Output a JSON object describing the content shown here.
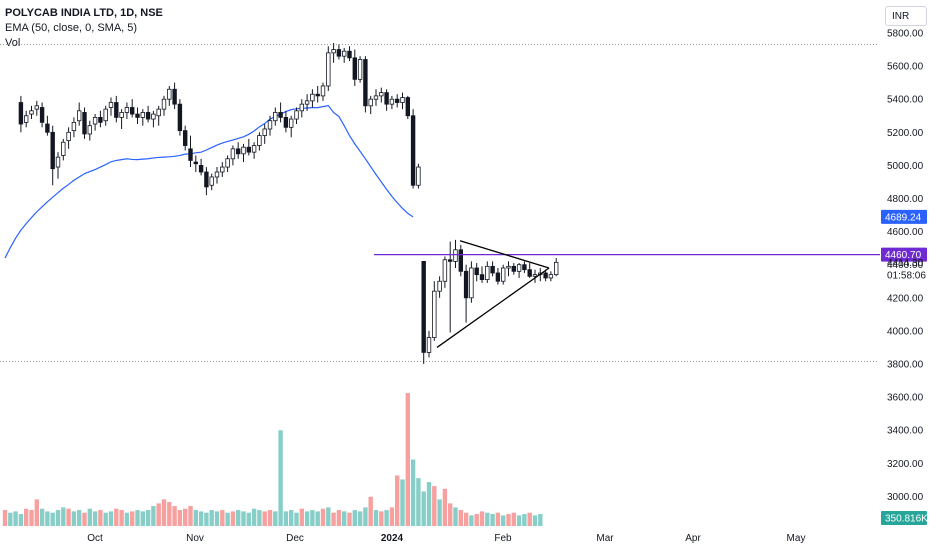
{
  "header": {
    "title": "POLYCAB INDIA LTD, 1D, NSE",
    "indicator": "EMA (50, close, 0, SMA, 5)",
    "volume_label": "Vol",
    "currency": "INR"
  },
  "colors": {
    "up": "#26a69a",
    "down": "#ef5350",
    "candle_body_up": "#ffffff",
    "candle_outline": "#131722",
    "ema": "#2962ff",
    "hline": "#6f2bd1",
    "badge_ema": "#2962ff",
    "badge_hline": "#6f2bd1",
    "badge_vol": "#26a69a"
  },
  "chart_data": {
    "type": "candlestick",
    "title": "POLYCAB INDIA LTD, 1D, NSE",
    "x_tick_labels": [
      "Oct",
      "Nov",
      "Dec",
      "2024",
      "Feb",
      "Mar",
      "Apr",
      "May"
    ],
    "y_tick_labels": [
      "5800.00",
      "5600.00",
      "5400.00",
      "5200.00",
      "5000.00",
      "4800.00",
      "4600.00",
      "4400.00",
      "4200.00",
      "4000.00",
      "3800.00",
      "3600.00",
      "3400.00",
      "3200.00",
      "3000.00"
    ],
    "ylim": [
      2900,
      5880
    ],
    "price_labels": {
      "ema_value": "4689.24",
      "hline_value": "4460.70",
      "last_price": "4414.30",
      "countdown": "01:58:06",
      "volume_value": "350.816K"
    },
    "hline_value": 4460.7,
    "triangle_annotation": {
      "apex": 4380,
      "upper_start": 4545,
      "lower_start": 3900
    },
    "ema_series": [
      4440,
      4503,
      4560,
      4609,
      4648,
      4685,
      4720,
      4750,
      4780,
      4808,
      4835,
      4862,
      4885,
      4910,
      4930,
      4950,
      4963,
      4975,
      4990,
      5005,
      5022,
      5030,
      5035,
      5040,
      5036,
      5035,
      5038,
      5040,
      5045,
      5048,
      5050,
      5052,
      5055,
      5060,
      5068,
      5070,
      5076,
      5080,
      5093,
      5108,
      5123,
      5135,
      5145,
      5153,
      5163,
      5173,
      5188,
      5208,
      5233,
      5253,
      5280,
      5295,
      5310,
      5325,
      5337,
      5342,
      5345,
      5347,
      5349,
      5349,
      5355,
      5361,
      5320,
      5295,
      5240,
      5180,
      5130,
      5085,
      5040,
      4992,
      4945,
      4900,
      4855,
      4813,
      4775,
      4740,
      4710,
      4689
    ],
    "candles": [
      {
        "o": 5380,
        "h": 5420,
        "l": 5200,
        "c": 5250
      },
      {
        "o": 5260,
        "h": 5330,
        "l": 5230,
        "c": 5300
      },
      {
        "o": 5310,
        "h": 5360,
        "l": 5280,
        "c": 5330
      },
      {
        "o": 5340,
        "h": 5390,
        "l": 5300,
        "c": 5360
      },
      {
        "o": 5350,
        "h": 5380,
        "l": 5230,
        "c": 5260
      },
      {
        "o": 5250,
        "h": 5300,
        "l": 5180,
        "c": 5200
      },
      {
        "o": 5200,
        "h": 5240,
        "l": 4880,
        "c": 4980
      },
      {
        "o": 4990,
        "h": 5080,
        "l": 4920,
        "c": 5050
      },
      {
        "o": 5060,
        "h": 5160,
        "l": 5030,
        "c": 5140
      },
      {
        "o": 5150,
        "h": 5230,
        "l": 5100,
        "c": 5200
      },
      {
        "o": 5210,
        "h": 5290,
        "l": 5170,
        "c": 5260
      },
      {
        "o": 5270,
        "h": 5380,
        "l": 5240,
        "c": 5330
      },
      {
        "o": 5320,
        "h": 5350,
        "l": 5160,
        "c": 5190
      },
      {
        "o": 5190,
        "h": 5270,
        "l": 5150,
        "c": 5240
      },
      {
        "o": 5250,
        "h": 5310,
        "l": 5210,
        "c": 5290
      },
      {
        "o": 5290,
        "h": 5330,
        "l": 5230,
        "c": 5260
      },
      {
        "o": 5270,
        "h": 5360,
        "l": 5240,
        "c": 5340
      },
      {
        "o": 5350,
        "h": 5410,
        "l": 5300,
        "c": 5380
      },
      {
        "o": 5380,
        "h": 5420,
        "l": 5260,
        "c": 5290
      },
      {
        "o": 5290,
        "h": 5340,
        "l": 5220,
        "c": 5320
      },
      {
        "o": 5320,
        "h": 5380,
        "l": 5280,
        "c": 5350
      },
      {
        "o": 5350,
        "h": 5400,
        "l": 5290,
        "c": 5310
      },
      {
        "o": 5310,
        "h": 5350,
        "l": 5250,
        "c": 5290
      },
      {
        "o": 5290,
        "h": 5340,
        "l": 5240,
        "c": 5320
      },
      {
        "o": 5320,
        "h": 5360,
        "l": 5260,
        "c": 5280
      },
      {
        "o": 5280,
        "h": 5330,
        "l": 5230,
        "c": 5310
      },
      {
        "o": 5300,
        "h": 5360,
        "l": 5240,
        "c": 5340
      },
      {
        "o": 5340,
        "h": 5420,
        "l": 5300,
        "c": 5400
      },
      {
        "o": 5400,
        "h": 5480,
        "l": 5360,
        "c": 5460
      },
      {
        "o": 5460,
        "h": 5500,
        "l": 5340,
        "c": 5370
      },
      {
        "o": 5370,
        "h": 5400,
        "l": 5180,
        "c": 5210
      },
      {
        "o": 5210,
        "h": 5240,
        "l": 5090,
        "c": 5120
      },
      {
        "o": 5100,
        "h": 5180,
        "l": 4990,
        "c": 5030
      },
      {
        "o": 5020,
        "h": 5060,
        "l": 4960,
        "c": 5010
      },
      {
        "o": 5000,
        "h": 5040,
        "l": 4940,
        "c": 4960
      },
      {
        "o": 4960,
        "h": 4990,
        "l": 4820,
        "c": 4870
      },
      {
        "o": 4880,
        "h": 4950,
        "l": 4850,
        "c": 4930
      },
      {
        "o": 4930,
        "h": 4990,
        "l": 4890,
        "c": 4960
      },
      {
        "o": 4960,
        "h": 5020,
        "l": 4930,
        "c": 4990
      },
      {
        "o": 4990,
        "h": 5060,
        "l": 4960,
        "c": 5040
      },
      {
        "o": 5040,
        "h": 5120,
        "l": 5000,
        "c": 5100
      },
      {
        "o": 5100,
        "h": 5140,
        "l": 5040,
        "c": 5070
      },
      {
        "o": 5070,
        "h": 5130,
        "l": 5020,
        "c": 5110
      },
      {
        "o": 5110,
        "h": 5160,
        "l": 5060,
        "c": 5080
      },
      {
        "o": 5080,
        "h": 5140,
        "l": 5040,
        "c": 5120
      },
      {
        "o": 5120,
        "h": 5200,
        "l": 5090,
        "c": 5180
      },
      {
        "o": 5180,
        "h": 5250,
        "l": 5130,
        "c": 5220
      },
      {
        "o": 5220,
        "h": 5300,
        "l": 5180,
        "c": 5270
      },
      {
        "o": 5270,
        "h": 5350,
        "l": 5240,
        "c": 5320
      },
      {
        "o": 5320,
        "h": 5380,
        "l": 5260,
        "c": 5290
      },
      {
        "o": 5290,
        "h": 5330,
        "l": 5200,
        "c": 5230
      },
      {
        "o": 5230,
        "h": 5300,
        "l": 5170,
        "c": 5280
      },
      {
        "o": 5280,
        "h": 5350,
        "l": 5250,
        "c": 5330
      },
      {
        "o": 5330,
        "h": 5400,
        "l": 5290,
        "c": 5370
      },
      {
        "o": 5370,
        "h": 5430,
        "l": 5330,
        "c": 5390
      },
      {
        "o": 5390,
        "h": 5460,
        "l": 5350,
        "c": 5430
      },
      {
        "o": 5430,
        "h": 5480,
        "l": 5380,
        "c": 5420
      },
      {
        "o": 5420,
        "h": 5500,
        "l": 5390,
        "c": 5480
      },
      {
        "o": 5480,
        "h": 5720,
        "l": 5450,
        "c": 5680
      },
      {
        "o": 5680,
        "h": 5740,
        "l": 5620,
        "c": 5700
      },
      {
        "o": 5700,
        "h": 5730,
        "l": 5640,
        "c": 5660
      },
      {
        "o": 5660,
        "h": 5710,
        "l": 5620,
        "c": 5690
      },
      {
        "o": 5690,
        "h": 5720,
        "l": 5630,
        "c": 5650
      },
      {
        "o": 5650,
        "h": 5700,
        "l": 5480,
        "c": 5520
      },
      {
        "o": 5520,
        "h": 5660,
        "l": 5500,
        "c": 5640
      },
      {
        "o": 5640,
        "h": 5660,
        "l": 5320,
        "c": 5360
      },
      {
        "o": 5360,
        "h": 5420,
        "l": 5310,
        "c": 5400
      },
      {
        "o": 5400,
        "h": 5460,
        "l": 5360,
        "c": 5420
      },
      {
        "o": 5420,
        "h": 5470,
        "l": 5380,
        "c": 5440
      },
      {
        "o": 5440,
        "h": 5460,
        "l": 5330,
        "c": 5370
      },
      {
        "o": 5370,
        "h": 5420,
        "l": 5340,
        "c": 5400
      },
      {
        "o": 5400,
        "h": 5430,
        "l": 5350,
        "c": 5380
      },
      {
        "o": 5380,
        "h": 5440,
        "l": 5340,
        "c": 5410
      },
      {
        "o": 5410,
        "h": 5420,
        "l": 5280,
        "c": 5300
      },
      {
        "o": 5300,
        "h": 5340,
        "l": 4860,
        "c": 4880
      },
      {
        "o": 4880,
        "h": 5010,
        "l": 4860,
        "c": 4990
      },
      {
        "o": 4420,
        "h": 4420,
        "l": 3800,
        "c": 3870
      },
      {
        "o": 3870,
        "h": 4000,
        "l": 3840,
        "c": 3960
      },
      {
        "o": 3960,
        "h": 4300,
        "l": 3940,
        "c": 4240
      },
      {
        "o": 4240,
        "h": 4330,
        "l": 4200,
        "c": 4300
      },
      {
        "o": 4300,
        "h": 4450,
        "l": 4260,
        "c": 4430
      },
      {
        "o": 4430,
        "h": 4540,
        "l": 3990,
        "c": 4420
      },
      {
        "o": 4420,
        "h": 4550,
        "l": 4380,
        "c": 4490
      },
      {
        "o": 4490,
        "h": 4520,
        "l": 4330,
        "c": 4360
      },
      {
        "o": 4360,
        "h": 4400,
        "l": 4050,
        "c": 4200
      },
      {
        "o": 4200,
        "h": 4420,
        "l": 4170,
        "c": 4380
      },
      {
        "o": 4380,
        "h": 4410,
        "l": 4300,
        "c": 4340
      },
      {
        "o": 4340,
        "h": 4390,
        "l": 4290,
        "c": 4310
      },
      {
        "o": 4310,
        "h": 4420,
        "l": 4290,
        "c": 4390
      },
      {
        "o": 4390,
        "h": 4420,
        "l": 4330,
        "c": 4350
      },
      {
        "o": 4350,
        "h": 4380,
        "l": 4280,
        "c": 4300
      },
      {
        "o": 4300,
        "h": 4400,
        "l": 4280,
        "c": 4380
      },
      {
        "o": 4380,
        "h": 4420,
        "l": 4330,
        "c": 4390
      },
      {
        "o": 4390,
        "h": 4410,
        "l": 4340,
        "c": 4360
      },
      {
        "o": 4360,
        "h": 4410,
        "l": 4320,
        "c": 4400
      },
      {
        "o": 4400,
        "h": 4420,
        "l": 4350,
        "c": 4370
      },
      {
        "o": 4370,
        "h": 4410,
        "l": 4320,
        "c": 4330
      },
      {
        "o": 4330,
        "h": 4370,
        "l": 4290,
        "c": 4340
      },
      {
        "o": 4340,
        "h": 4380,
        "l": 4300,
        "c": 4350
      },
      {
        "o": 4350,
        "h": 4370,
        "l": 4300,
        "c": 4320
      },
      {
        "o": 4320,
        "h": 4360,
        "l": 4300,
        "c": 4340
      },
      {
        "o": 4340,
        "h": 4440,
        "l": 4330,
        "c": 4414
      }
    ],
    "volumes": [
      0.12,
      0.1,
      0.11,
      0.09,
      0.13,
      0.12,
      0.2,
      0.13,
      0.11,
      0.1,
      0.12,
      0.14,
      0.13,
      0.11,
      0.12,
      0.1,
      0.13,
      0.11,
      0.12,
      0.1,
      0.11,
      0.13,
      0.12,
      0.1,
      0.11,
      0.12,
      0.11,
      0.12,
      0.15,
      0.17,
      0.2,
      0.18,
      0.15,
      0.12,
      0.13,
      0.15,
      0.12,
      0.11,
      0.1,
      0.12,
      0.11,
      0.12,
      0.1,
      0.11,
      0.12,
      0.11,
      0.1,
      0.13,
      0.12,
      0.11,
      0.12,
      0.11,
      0.72,
      0.11,
      0.12,
      0.1,
      0.13,
      0.11,
      0.12,
      0.11,
      0.13,
      0.14,
      0.1,
      0.12,
      0.11,
      0.1,
      0.12,
      0.11,
      0.14,
      0.22,
      0.12,
      0.11,
      0.12,
      0.14,
      0.38,
      0.35,
      1.0,
      0.5,
      0.36,
      0.26,
      0.33,
      0.3,
      0.2,
      0.28,
      0.17,
      0.14,
      0.12,
      0.1,
      0.08,
      0.09,
      0.11,
      0.1,
      0.09,
      0.1,
      0.08,
      0.09,
      0.1,
      0.08,
      0.09,
      0.1,
      0.08,
      0.09
    ]
  }
}
